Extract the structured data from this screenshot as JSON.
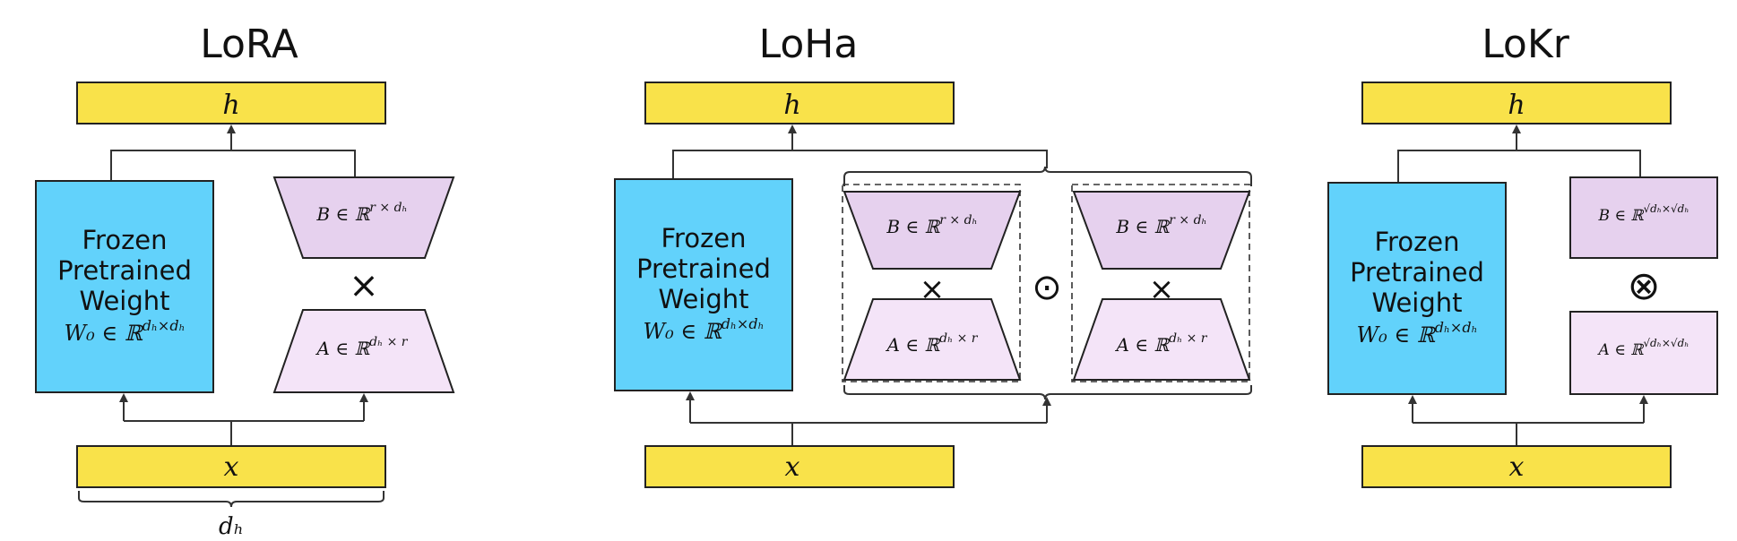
{
  "lora": {
    "title": "LoRA",
    "h": "h",
    "x": "x",
    "frozen_line1": "Frozen",
    "frozen_line2": "Pretrained",
    "frozen_line3": "Weight",
    "w0_label": "W₀ ∈ ℝ",
    "w0_sup": "dₕ×dₕ",
    "b_label": "B ∈ ℝ",
    "b_sup": "r × dₕ",
    "a_label": "A ∈ ℝ",
    "a_sup": "dₕ × r",
    "times": "×",
    "dh": "dₕ"
  },
  "loha": {
    "title": "LoHa",
    "h": "h",
    "x": "x",
    "frozen_line1": "Frozen",
    "frozen_line2": "Pretrained",
    "frozen_line3": "Weight",
    "w0_label": "W₀ ∈ ℝ",
    "w0_sup": "dₕ×dₕ",
    "b1_label": "B ∈ ℝ",
    "b1_sup": "r × dₕ",
    "a1_label": "A ∈ ℝ",
    "a1_sup": "dₕ × r",
    "b2_label": "B ∈ ℝ",
    "b2_sup": "r × dₕ",
    "a2_label": "A ∈ ℝ",
    "a2_sup": "dₕ × r",
    "times": "×",
    "hadamard": "⊙"
  },
  "lokr": {
    "title": "LoKr",
    "h": "h",
    "x": "x",
    "frozen_line1": "Frozen",
    "frozen_line2": "Pretrained",
    "frozen_line3": "Weight",
    "w0_label": "W₀ ∈ ℝ",
    "w0_sup": "dₕ×dₕ",
    "b_label": "B ∈ ℝ",
    "b_sup": "√dₕ×√dₕ",
    "a_label": "A ∈ ℝ",
    "a_sup": "√dₕ×√dₕ",
    "kron": "⊗"
  }
}
